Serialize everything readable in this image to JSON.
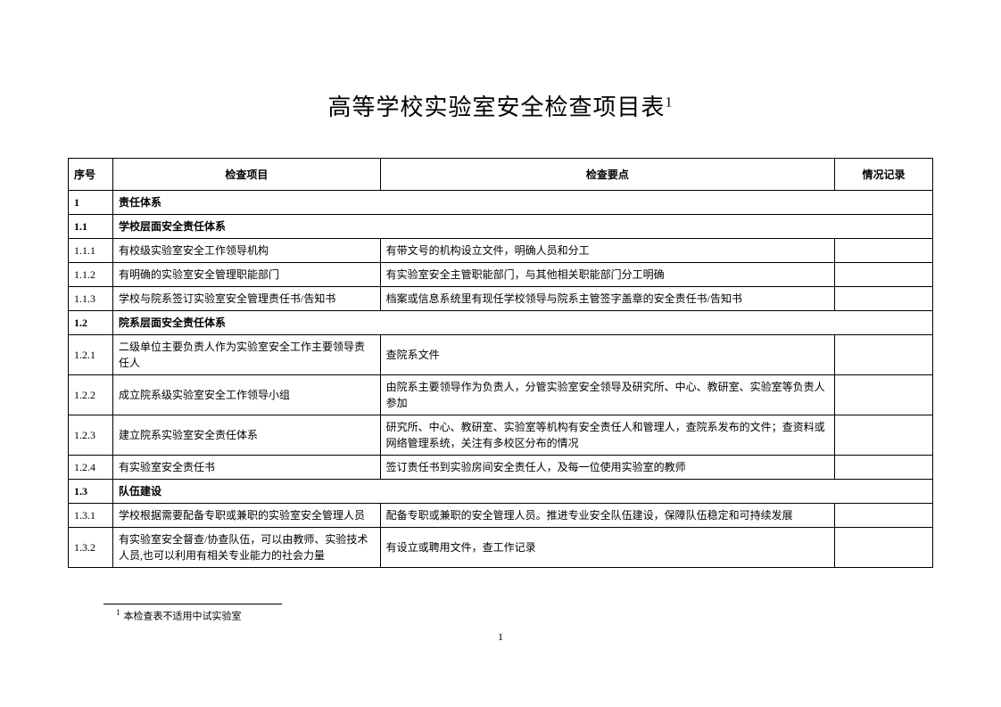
{
  "title": "高等学校实验室安全检查项目表",
  "title_super": "1",
  "columns": [
    "序号",
    "检查项目",
    "检查要点",
    "情况记录"
  ],
  "col_widths": [
    "50px",
    "300px",
    "510px",
    "110px"
  ],
  "font_family": "SimSun",
  "title_fontsize": 26,
  "cell_fontsize": 12,
  "border_color": "#000000",
  "background_color": "#ffffff",
  "rows": [
    {
      "type": "section",
      "seq": "1",
      "text": "责任体系"
    },
    {
      "type": "section",
      "seq": "1.1",
      "text": "学校层面安全责任体系"
    },
    {
      "type": "data",
      "seq": "1.1.1",
      "item": "有校级实验室安全工作领导机构",
      "point": "有带文号的机构设立文件，明确人员和分工",
      "record": ""
    },
    {
      "type": "data",
      "seq": "1.1.2",
      "item": "有明确的实验室安全管理职能部门",
      "point": "有实验室安全主管职能部门，与其他相关职能部门分工明确",
      "record": ""
    },
    {
      "type": "data",
      "seq": "1.1.3",
      "item": "学校与院系签订实验室安全管理责任书/告知书",
      "point": "档案或信息系统里有现任学校领导与院系主管签字盖章的安全责任书/告知书",
      "record": ""
    },
    {
      "type": "section",
      "seq": "1.2",
      "text": "院系层面安全责任体系"
    },
    {
      "type": "data",
      "seq": "1.2.1",
      "item": "二级单位主要负责人作为实验室安全工作主要领导责任人",
      "point": "查院系文件",
      "record": ""
    },
    {
      "type": "data",
      "seq": "1.2.2",
      "item": "成立院系级实验室安全工作领导小组",
      "point": "由院系主要领导作为负责人，分管实验室安全领导及研究所、中心、教研室、实验室等负责人参加",
      "record": ""
    },
    {
      "type": "data",
      "seq": "1.2.3",
      "item": "建立院系实验室安全责任体系",
      "point": "研究所、中心、教研室、实验室等机构有安全责任人和管理人，查院系发布的文件；查资料或网络管理系统，关注有多校区分布的情况",
      "record": ""
    },
    {
      "type": "data",
      "seq": "1.2.4",
      "item": "有实验室安全责任书",
      "point": "签订责任书到实验房间安全责任人，及每一位使用实验室的教师",
      "record": ""
    },
    {
      "type": "section",
      "seq": "1.3",
      "text": "队伍建设"
    },
    {
      "type": "data",
      "seq": "1.3.1",
      "item": "学校根据需要配备专职或兼职的实验室安全管理人员",
      "point": "配备专职或兼职的安全管理人员。推进专业安全队伍建设，保障队伍稳定和可持续发展",
      "record": ""
    },
    {
      "type": "data",
      "seq": "1.3.2",
      "item": "有实验室安全督查/协查队伍，可以由教师、实验技术人员,也可以利用有相关专业能力的社会力量",
      "point": "有设立或聘用文件，查工作记录",
      "record": ""
    }
  ],
  "footnote_super": "1",
  "footnote_text": "本检查表不适用中试实验室",
  "page_number": "1"
}
